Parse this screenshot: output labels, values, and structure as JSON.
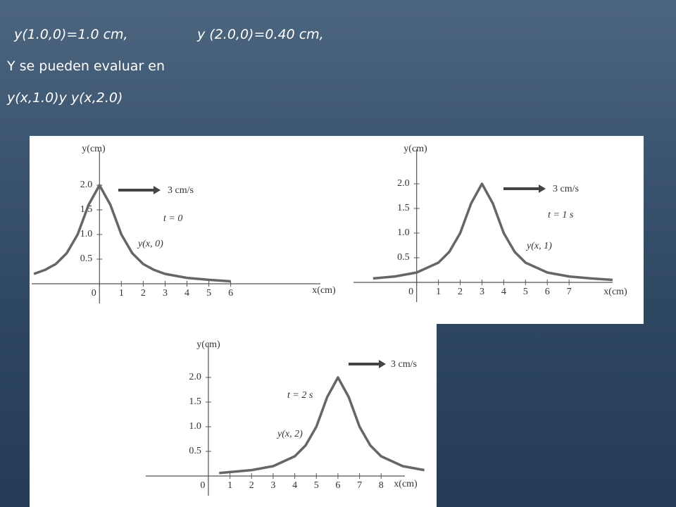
{
  "header": {
    "line1": "y(1.0,0)=1.0 cm,",
    "line2": "y (2.0,0)=0.40 cm,",
    "line3": "Y se pueden evaluar en",
    "line4": "y(x,1.0)y y(x,2.0)"
  },
  "chart_data": [
    {
      "type": "line",
      "x_label": "x(cm)",
      "y_label": "y(cm)",
      "annotations": [
        "3 cm/s",
        "t = 0"
      ],
      "x": [
        -3,
        -2.5,
        -2,
        -1.5,
        -1,
        -0.5,
        0,
        0.5,
        1,
        1.5,
        2,
        2.5,
        3,
        4,
        5,
        6
      ],
      "series": [
        {
          "name": "y(x, 0)",
          "color": "#666666",
          "values": [
            0.2,
            0.28,
            0.4,
            0.62,
            1.0,
            1.6,
            2.0,
            1.6,
            1.0,
            0.62,
            0.4,
            0.28,
            0.2,
            0.12,
            0.08,
            0.05
          ]
        }
      ],
      "xlim": [
        -3.1,
        10.1
      ],
      "ylim": [
        -0.4,
        2.7
      ],
      "xticks": [
        0,
        1,
        2,
        3,
        4,
        5,
        6
      ],
      "yticks": [
        0.5,
        {
          "value": 1,
          "label": "1.0"
        },
        1.5,
        {
          "value": 2,
          "label": "2.0"
        }
      ]
    },
    {
      "type": "line",
      "x_label": "x(cm)",
      "y_label": "y(cm)",
      "annotations": [
        "3 cm/s",
        "t = 1 s"
      ],
      "x": [
        -2,
        -1,
        0,
        1,
        1.5,
        2,
        2.5,
        3,
        3.5,
        4,
        4.5,
        5,
        6,
        7,
        8,
        9
      ],
      "series": [
        {
          "name": "y(x, 1)",
          "color": "#666666",
          "values": [
            0.08,
            0.12,
            0.2,
            0.4,
            0.62,
            1.0,
            1.6,
            2.0,
            1.6,
            1.0,
            0.62,
            0.4,
            0.2,
            0.12,
            0.08,
            0.05
          ]
        }
      ],
      "xlim": [
        -2.9,
        9
      ],
      "ylim": [
        -0.4,
        2.7
      ],
      "xticks": [
        0,
        1,
        2,
        3,
        4,
        5,
        6,
        7
      ],
      "yticks": [
        0.5,
        {
          "value": 1,
          "label": "1.0"
        },
        1.5,
        {
          "value": 2,
          "label": "2.0"
        }
      ]
    },
    {
      "type": "line",
      "x_label": "x(cm)",
      "y_label": "y(cm)",
      "annotations": [
        "3 cm/s",
        "t = 2 s"
      ],
      "x": [
        0.5,
        1,
        2,
        3,
        4,
        4.5,
        5,
        5.5,
        6,
        6.5,
        7,
        7.5,
        8,
        9,
        10
      ],
      "series": [
        {
          "name": "y(x, 2)",
          "color": "#666666",
          "values": [
            0.06,
            0.08,
            0.12,
            0.2,
            0.4,
            0.62,
            1.0,
            1.6,
            2.0,
            1.6,
            1.0,
            0.62,
            0.4,
            0.2,
            0.12
          ]
        }
      ],
      "xlim": [
        -2.9,
        9.1
      ],
      "ylim": [
        -0.4,
        2.7
      ],
      "xticks": [
        0,
        1,
        2,
        3,
        4,
        5,
        6,
        7,
        8
      ],
      "yticks": [
        0.5,
        {
          "value": 1,
          "label": "1.0"
        },
        1.5,
        {
          "value": 2,
          "label": "2.0"
        }
      ]
    }
  ]
}
